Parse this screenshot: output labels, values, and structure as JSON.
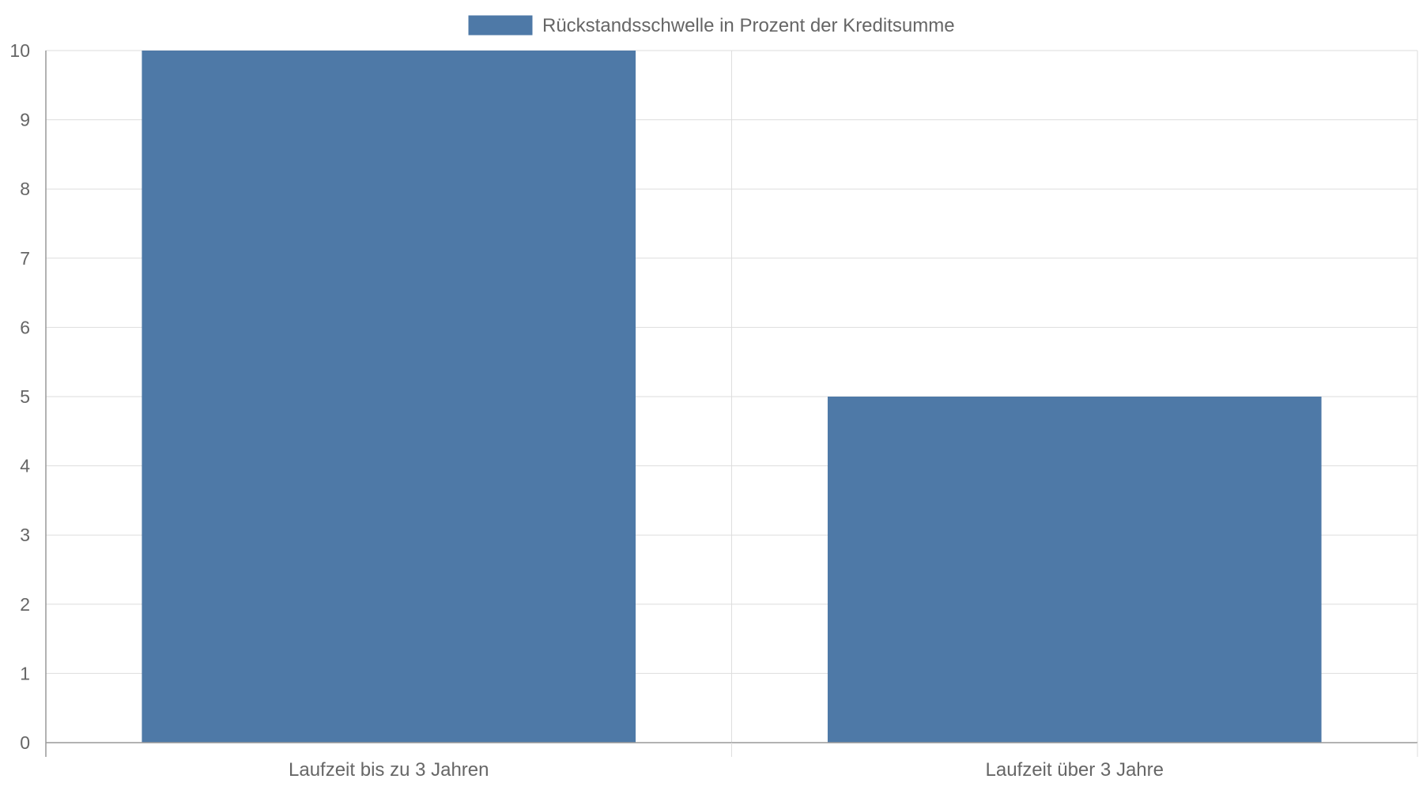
{
  "chart_data": {
    "type": "bar",
    "categories": [
      "Laufzeit bis zu 3 Jahren",
      "Laufzeit über 3 Jahre"
    ],
    "series": [
      {
        "name": "Rückstandsschwelle in Prozent der Kreditsumme",
        "values": [
          10,
          5
        ],
        "color": "#4e79a7"
      }
    ],
    "ylim": [
      0,
      10
    ],
    "yticks": [
      0,
      1,
      2,
      3,
      4,
      5,
      6,
      7,
      8,
      9,
      10
    ],
    "grid": true,
    "legend_position": "top-center",
    "title": "",
    "xlabel": "",
    "ylabel": ""
  }
}
